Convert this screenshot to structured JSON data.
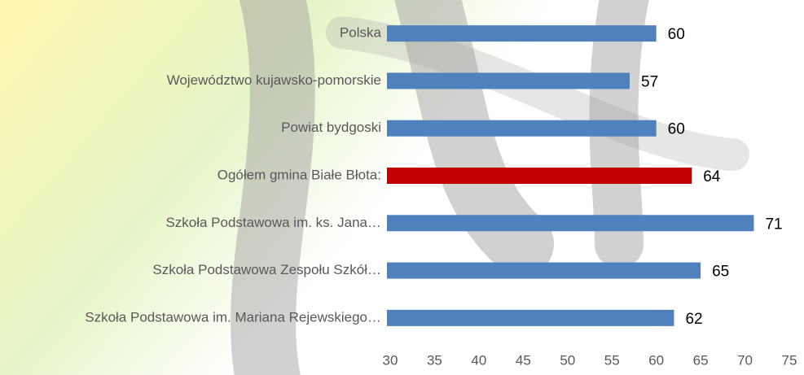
{
  "chart_data": {
    "type": "hbar",
    "categories": [
      "Polska",
      "Województwo kujawsko-pomorskie",
      "Powiat bydgoski",
      "Ogółem gmina Białe Błota:",
      "Szkoła Podstawowa im. ks. Jana…",
      "Szkoła Podstawowa Zespołu Szkół…",
      "Szkoła Podstawowa im. Mariana Rejewskiego…"
    ],
    "values": [
      60,
      57,
      60,
      64,
      71,
      65,
      62
    ],
    "colors": [
      "#4f81bd",
      "#4f81bd",
      "#4f81bd",
      "#c00000",
      "#4f81bd",
      "#4f81bd",
      "#4f81bd"
    ],
    "xlim": [
      30,
      75
    ],
    "xticks": [
      30,
      35,
      40,
      45,
      50,
      55,
      60,
      65,
      70,
      75
    ],
    "grid": false
  }
}
